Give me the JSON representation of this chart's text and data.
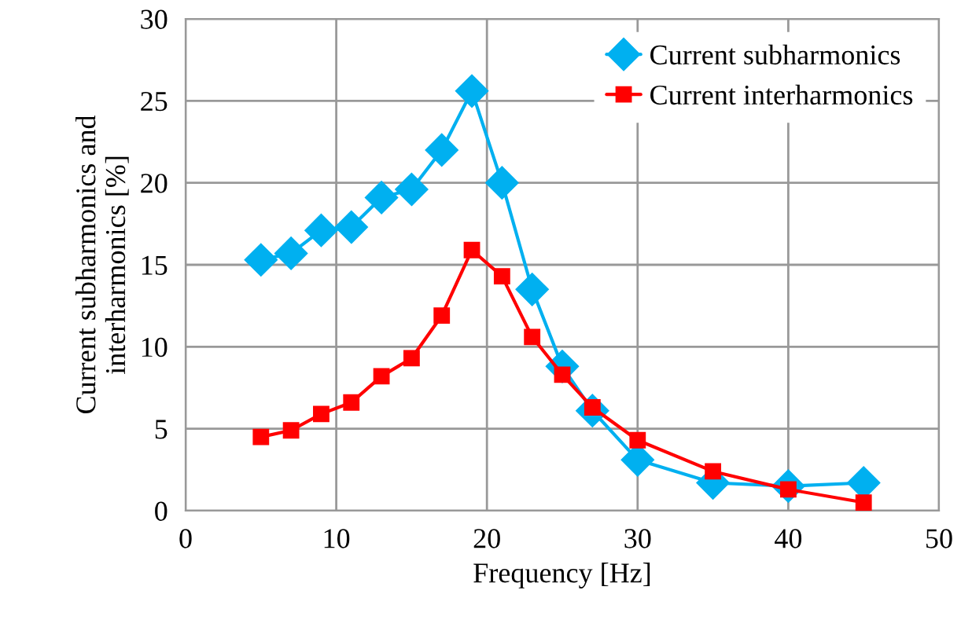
{
  "chart_data": {
    "type": "line",
    "xlabel": "Frequency [Hz]",
    "ylabel": "Current subharmonics and\ninterharmonics [%]",
    "x": [
      5,
      7,
      9,
      11,
      13,
      15,
      17,
      19,
      21,
      23,
      25,
      27,
      30,
      35,
      40,
      45
    ],
    "series": [
      {
        "name": "Current subharmonics",
        "color": "#00b0f0",
        "marker": "diamond",
        "values": [
          15.3,
          15.7,
          17.1,
          17.3,
          19.1,
          19.6,
          22.0,
          25.6,
          20.0,
          13.5,
          8.8,
          6.1,
          3.1,
          1.7,
          1.5,
          1.7
        ]
      },
      {
        "name": "Current interharmonics",
        "color": "#ff0000",
        "marker": "square",
        "values": [
          4.5,
          4.9,
          5.9,
          6.6,
          8.2,
          9.3,
          11.9,
          15.9,
          14.3,
          10.6,
          8.3,
          6.3,
          4.3,
          2.4,
          1.3,
          0.5
        ]
      }
    ],
    "xlim": [
      0,
      50
    ],
    "xticks": [
      0,
      10,
      20,
      30,
      40,
      50
    ],
    "ylim": [
      0,
      30
    ],
    "yticks": [
      0,
      5,
      10,
      15,
      20,
      25,
      30
    ],
    "grid": true,
    "legend": "top right",
    "line_style": "solid"
  }
}
